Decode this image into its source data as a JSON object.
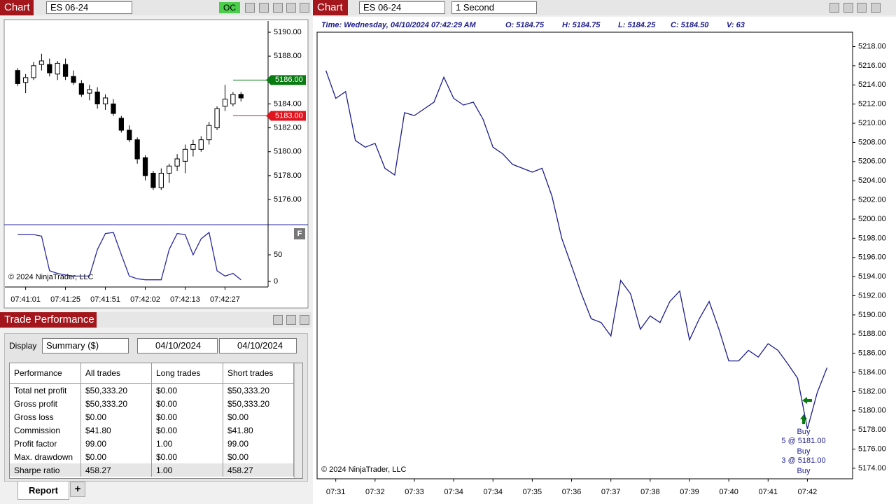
{
  "left_window": {
    "tab": "Chart",
    "instrument": "ES 06-24",
    "oc": "OC",
    "indicator_button": "F",
    "copyright": "© 2024 NinjaTrader, LLC"
  },
  "right_window": {
    "tab": "Chart",
    "instrument": "ES 06-24",
    "interval": "1 Second",
    "info": {
      "time": "Time: Wednesday, 04/10/2024 07:42:29 AM",
      "open": "O: 5184.75",
      "high": "H: 5184.75",
      "low": "L: 5184.25",
      "close": "C: 5184.50",
      "volume": "V: 63"
    },
    "copyright": "© 2024 NinjaTrader, LLC",
    "trade_labels": [
      "Buy",
      "5 @ 5181.00",
      "Buy",
      "3 @ 5181.00",
      "Buy"
    ]
  },
  "trade_performance": {
    "title": "Trade Performance",
    "display_label": "Display",
    "display_value": "Summary ($)",
    "from_date": "04/10/2024",
    "to_date": "04/10/2024",
    "table": {
      "header": [
        "Performance",
        "All trades",
        "Long trades",
        "Short trades"
      ],
      "rows": [
        [
          "Total net profit",
          "$50,333.20",
          "$0.00",
          "$50,333.20"
        ],
        [
          "Gross profit",
          "$50,333.20",
          "$0.00",
          "$50,333.20"
        ],
        [
          "Gross loss",
          "$0.00",
          "$0.00",
          "$0.00"
        ],
        [
          "Commission",
          "$41.80",
          "$0.00",
          "$41.80"
        ],
        [
          "Profit factor",
          "99.00",
          "1.00",
          "99.00"
        ],
        [
          "Max. drawdown",
          "$0.00",
          "$0.00",
          "$0.00"
        ],
        [
          "Sharpe ratio",
          "458.27",
          "1.00",
          "458.27"
        ]
      ]
    },
    "tabs": [
      "Report",
      "+"
    ]
  },
  "chart_data": [
    {
      "type": "candlestick",
      "open": [
        5186.8,
        5185.8,
        5186.2,
        5187.3,
        5187.3,
        5186.5,
        5187.3,
        5186.3,
        5185.7,
        5184.9,
        5185,
        5184,
        5184,
        5182.8,
        5181.8,
        5181,
        5179.5,
        5178.2,
        5177,
        5178.2,
        5178.8,
        5179.2,
        5180.2,
        5180.2,
        5181,
        5182,
        5183.8,
        5184,
        5184.8
      ],
      "high": [
        5187,
        5186.5,
        5187.5,
        5188.2,
        5187.8,
        5187.6,
        5187.8,
        5186.8,
        5186,
        5185.6,
        5185.4,
        5184.8,
        5184.4,
        5183,
        5182.2,
        5181.2,
        5179.7,
        5178.4,
        5178.6,
        5179,
        5179.8,
        5180.6,
        5181,
        5181.3,
        5182.5,
        5183.8,
        5185.6,
        5185,
        5185
      ],
      "low": [
        5185.5,
        5184.9,
        5186,
        5186.8,
        5186.3,
        5186,
        5186,
        5185.6,
        5184.6,
        5184.3,
        5183.6,
        5183.5,
        5183,
        5181.6,
        5180.8,
        5179,
        5177.6,
        5176.8,
        5176.8,
        5177.4,
        5178.4,
        5178.2,
        5179.6,
        5180,
        5180.6,
        5181.8,
        5183.4,
        5183.8,
        5184.2
      ],
      "close": [
        5185.7,
        5186.2,
        5187.2,
        5187.6,
        5186.6,
        5187.4,
        5186.3,
        5185.8,
        5184.8,
        5185.2,
        5184,
        5184.5,
        5183.2,
        5181.8,
        5181,
        5179.4,
        5178,
        5177,
        5178.2,
        5178.8,
        5179.4,
        5180.2,
        5180.6,
        5181,
        5182.2,
        5183.6,
        5184.4,
        5184.8,
        5184.5
      ],
      "up_color": "#ffffff",
      "down_color": "#000000",
      "xlim": [
        -1.6,
        31.4
      ],
      "ylim": [
        5173.95,
        5190.94
      ],
      "xticks": [
        {
          "value": 1,
          "label": "07:41:01"
        },
        {
          "value": 6,
          "label": "07:41:25"
        },
        {
          "value": 11,
          "label": "07:41:51"
        },
        {
          "value": 16,
          "label": "07:42:02"
        },
        {
          "value": 21,
          "label": "07:42:13"
        },
        {
          "value": 26,
          "label": "07:42:27"
        }
      ],
      "yticks": [
        {
          "value": 5176,
          "label": "5176.00"
        },
        {
          "value": 5178,
          "label": "5178.00"
        },
        {
          "value": 5180,
          "label": "5180.00"
        },
        {
          "value": 5182,
          "label": "5182.00"
        },
        {
          "value": 5184,
          "label": "5184.00"
        },
        {
          "value": 5186,
          "label": "5186.00"
        },
        {
          "value": 5188,
          "label": "5188.00"
        },
        {
          "value": 5190,
          "label": "5190.00"
        }
      ],
      "price_markers": [
        {
          "value": 5186,
          "label": "5186.00",
          "color": "#0a7a12"
        },
        {
          "value": 5183,
          "label": "5183.00",
          "color": "#e0141e"
        }
      ]
    },
    {
      "type": "line",
      "color": "#2a2aa0",
      "values": [
        88,
        88,
        88,
        85,
        20,
        15,
        12,
        10,
        10,
        10,
        60,
        90,
        92,
        50,
        10,
        5,
        3,
        3,
        3,
        60,
        90,
        88,
        50,
        80,
        92,
        20,
        10,
        15,
        3
      ],
      "xlim": [
        -1.6,
        31.4
      ],
      "ylim": [
        -10.5,
        105.3
      ],
      "yticks": [
        0,
        50
      ]
    },
    {
      "type": "line",
      "color": "#1c1c8c",
      "values": [
        5215.5,
        5212.6,
        5213.3,
        5208.2,
        5207.5,
        5207.9,
        5205.3,
        5204.6,
        5211.1,
        5210.8,
        5211.5,
        5212.2,
        5214.8,
        5212.6,
        5211.9,
        5212.2,
        5210.4,
        5207.5,
        5206.8,
        5205.7,
        5205.3,
        5204.9,
        5205.3,
        5202.4,
        5198.0,
        5195.1,
        5192.2,
        5189.6,
        5189.2,
        5187.8,
        5193.6,
        5192.2,
        5188.5,
        5189.9,
        5189.2,
        5191.4,
        5192.5,
        5187.4,
        5189.6,
        5191.4,
        5188.5,
        5185.2,
        5185.2,
        5186.3,
        5185.6,
        5187.0,
        5186.3,
        5184.9,
        5183.4,
        5178.1,
        5181.9,
        5184.5
      ],
      "xlim": [
        -0.9,
        53.6
      ],
      "ylim": [
        5172.9,
        5219.5
      ],
      "xticks": [
        {
          "value": 1,
          "label": "07:31"
        },
        {
          "value": 5,
          "label": "07:32"
        },
        {
          "value": 9,
          "label": "07:33"
        },
        {
          "value": 13,
          "label": "07:34"
        },
        {
          "value": 17,
          "label": "07:34"
        },
        {
          "value": 21,
          "label": "07:35"
        },
        {
          "value": 25,
          "label": "07:36"
        },
        {
          "value": 29,
          "label": "07:37"
        },
        {
          "value": 33,
          "label": "07:38"
        },
        {
          "value": 37,
          "label": "07:39"
        },
        {
          "value": 41,
          "label": "07:40"
        },
        {
          "value": 45,
          "label": "07:41"
        },
        {
          "value": 49,
          "label": "07:42"
        }
      ],
      "yticks": [
        {
          "value": 5174,
          "label": "5174.00"
        },
        {
          "value": 5176,
          "label": "5176.00"
        },
        {
          "value": 5178,
          "label": "5178.00"
        },
        {
          "value": 5180,
          "label": "5180.00"
        },
        {
          "value": 5182,
          "label": "5182.00"
        },
        {
          "value": 5184,
          "label": "5184.00"
        },
        {
          "value": 5186,
          "label": "5186.00"
        },
        {
          "value": 5188,
          "label": "5188.00"
        },
        {
          "value": 5190,
          "label": "5190.00"
        },
        {
          "value": 5192,
          "label": "5192.00"
        },
        {
          "value": 5194,
          "label": "5194.00"
        },
        {
          "value": 5196,
          "label": "5196.00"
        },
        {
          "value": 5198,
          "label": "5198.00"
        },
        {
          "value": 5200,
          "label": "5200.00"
        },
        {
          "value": 5202,
          "label": "5202.00"
        },
        {
          "value": 5204,
          "label": "5204.00"
        },
        {
          "value": 5206,
          "label": "5206.00"
        },
        {
          "value": 5208,
          "label": "5208.00"
        },
        {
          "value": 5210,
          "label": "5210.00"
        },
        {
          "value": 5212,
          "label": "5212.00"
        },
        {
          "value": 5214,
          "label": "5214.00"
        },
        {
          "value": 5216,
          "label": "5216.00"
        },
        {
          "value": 5218,
          "label": "5218.00"
        }
      ]
    }
  ]
}
